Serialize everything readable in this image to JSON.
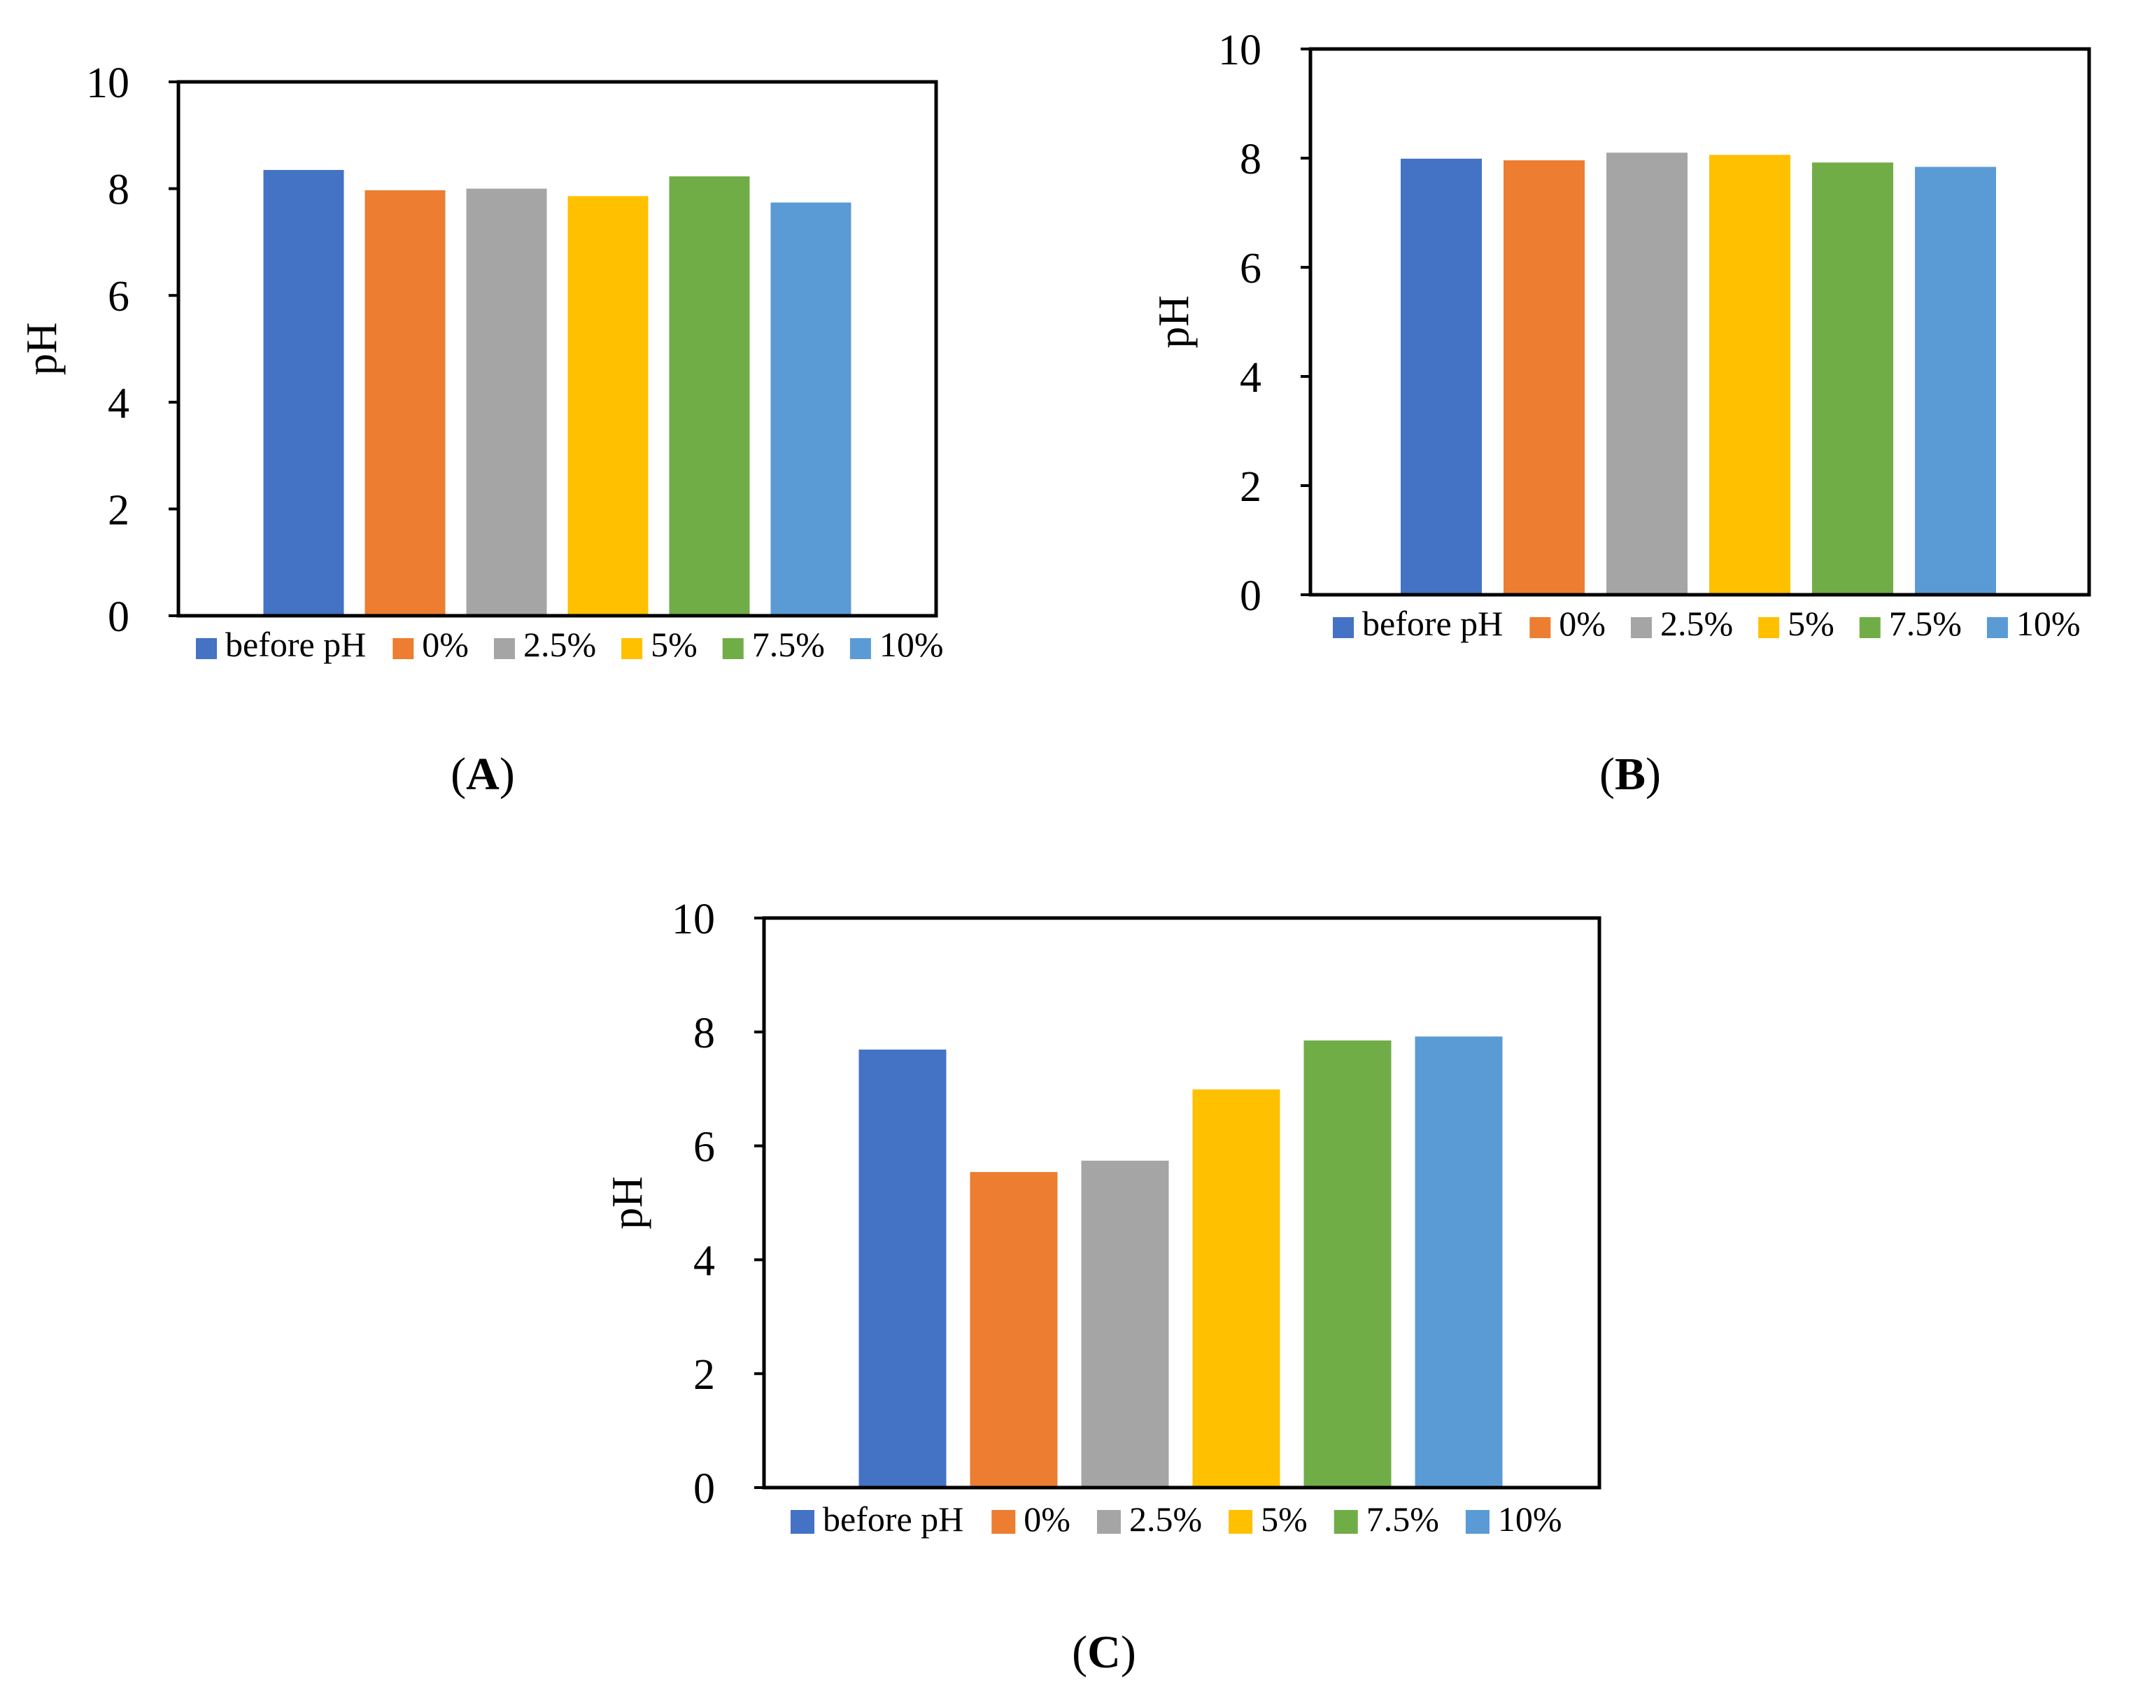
{
  "chart_data": [
    {
      "type": "bar",
      "panel": "A",
      "categories": [
        "before pH",
        "0%",
        "2.5%",
        "5%",
        "7.5%",
        "10%"
      ],
      "values": [
        8.35,
        7.97,
        8.0,
        7.86,
        8.23,
        7.74
      ],
      "ylabel": "pH",
      "ylim": [
        0,
        10
      ],
      "yticks": [
        0,
        2,
        4,
        6,
        8,
        10
      ],
      "legend_position": "bottom",
      "grid": false
    },
    {
      "type": "bar",
      "panel": "B",
      "categories": [
        "before pH",
        "0%",
        "2.5%",
        "5%",
        "7.5%",
        "10%"
      ],
      "values": [
        7.99,
        7.96,
        8.1,
        8.06,
        7.92,
        7.84
      ],
      "ylabel": "pH",
      "ylim": [
        0,
        10
      ],
      "yticks": [
        0,
        2,
        4,
        6,
        8,
        10
      ],
      "legend_position": "bottom",
      "grid": false
    },
    {
      "type": "bar",
      "panel": "C",
      "categories": [
        "before pH",
        "0%",
        "2.5%",
        "5%",
        "7.5%",
        "10%"
      ],
      "values": [
        7.69,
        5.54,
        5.74,
        6.99,
        7.85,
        7.92
      ],
      "ylabel": "pH",
      "ylim": [
        0,
        10
      ],
      "yticks": [
        0,
        2,
        4,
        6,
        8,
        10
      ],
      "legend_position": "bottom",
      "grid": false
    }
  ],
  "colors": [
    "#4472C4",
    "#ED7D31",
    "#A5A5A5",
    "#FFC000",
    "#70AD47",
    "#5B9BD5"
  ],
  "panel_labels": [
    {
      "open": "(",
      "letter": "A",
      "close": ")"
    },
    {
      "open": "(",
      "letter": "B",
      "close": ")"
    },
    {
      "open": "(",
      "letter": "C",
      "close": ")"
    }
  ]
}
